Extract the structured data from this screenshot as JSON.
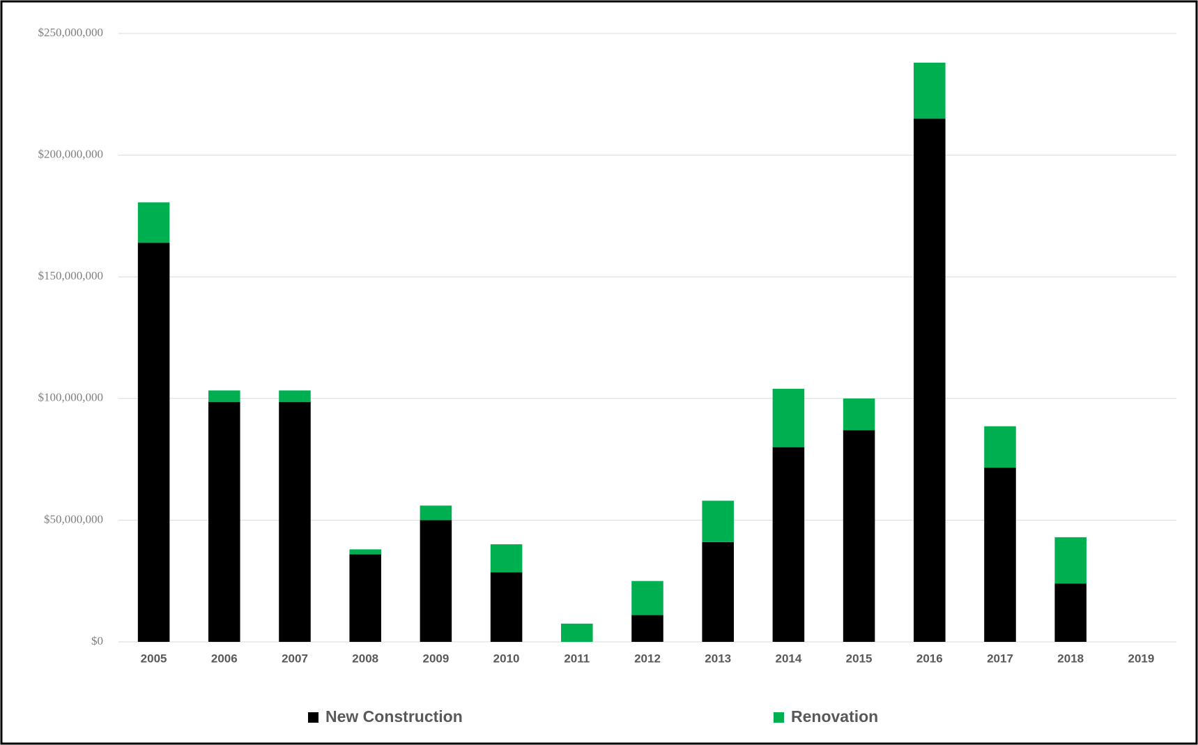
{
  "chart_data": {
    "type": "stacked-bar",
    "categories": [
      "2005",
      "2006",
      "2007",
      "2008",
      "2009",
      "2010",
      "2011",
      "2012",
      "2013",
      "2014",
      "2015",
      "2016",
      "2017",
      "2018",
      "2019"
    ],
    "series": [
      {
        "name": "New Construction",
        "color": "#000000",
        "values": [
          164000000,
          98600000,
          98600000,
          36000000,
          50000000,
          28600000,
          0,
          11000000,
          41000000,
          80000000,
          87000000,
          215000000,
          71600000,
          24000000,
          0
        ]
      },
      {
        "name": "Renovation",
        "color": "#00b050",
        "values": [
          16600000,
          4700000,
          4700000,
          2000000,
          6000000,
          11500000,
          7500000,
          14000000,
          17000000,
          24000000,
          13000000,
          23000000,
          17000000,
          19000000,
          0
        ]
      }
    ],
    "ylim": [
      0,
      250000000
    ],
    "yticks": [
      {
        "value": 0,
        "label": "$0"
      },
      {
        "value": 50000000,
        "label": "$50,000,000"
      },
      {
        "value": 100000000,
        "label": "$100,000,000"
      },
      {
        "value": 150000000,
        "label": "$150,000,000"
      },
      {
        "value": 200000000,
        "label": "$200,000,000"
      },
      {
        "value": 250000000,
        "label": "$250,000,000"
      }
    ],
    "grid": true,
    "legend": "bottom"
  }
}
